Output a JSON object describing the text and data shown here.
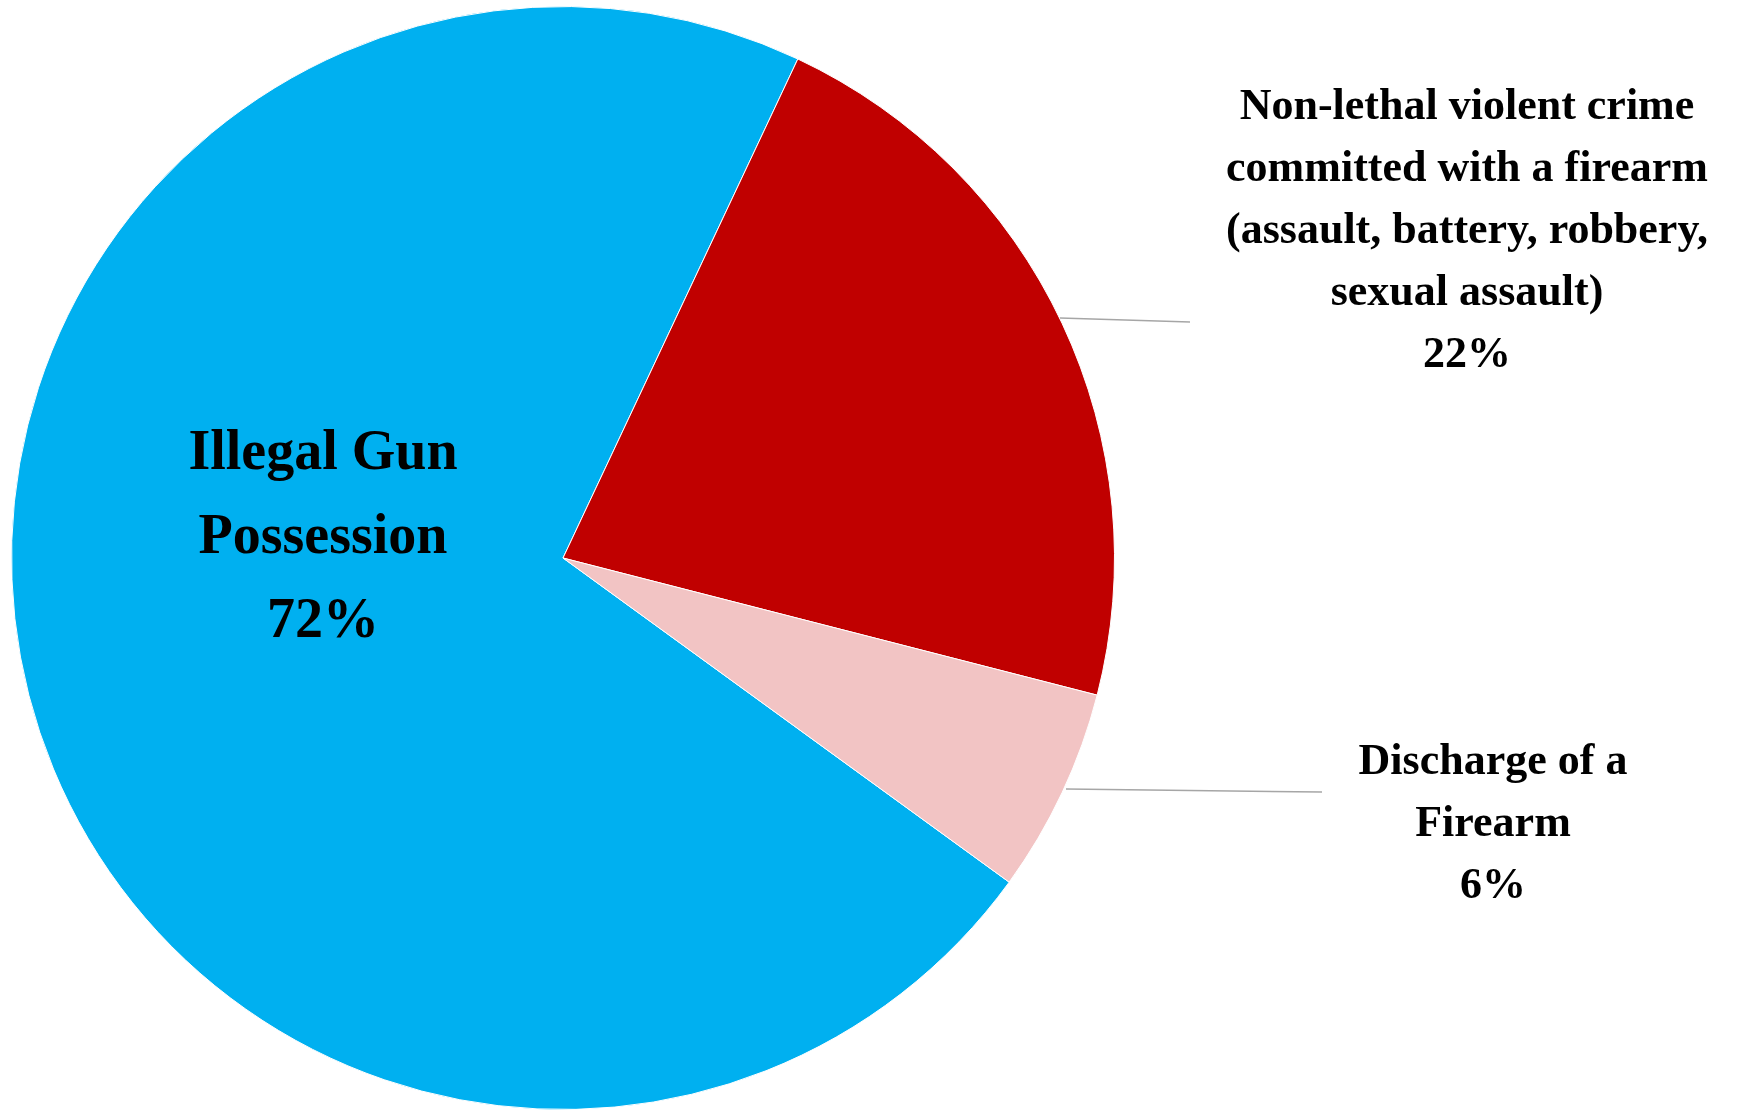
{
  "chart_data": {
    "type": "pie",
    "categories": [
      "Illegal Gun Possession",
      "Non-lethal violent crime committed with a firearm (assault, battery, robbery, sexual assault)",
      "Discharge of a Firearm"
    ],
    "values": [
      72,
      22,
      6
    ],
    "value_labels": [
      "72%",
      "22%",
      "6%"
    ],
    "colors": [
      "#00b0f0",
      "#c00000",
      "#f2c4c4"
    ],
    "legend": false
  }
}
